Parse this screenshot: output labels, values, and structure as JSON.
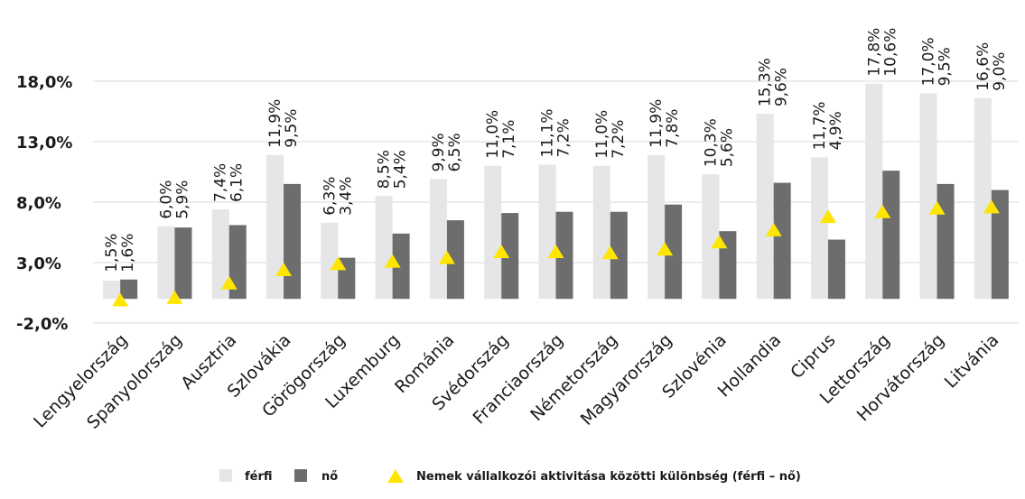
{
  "chart_data": {
    "type": "bar",
    "categories": [
      "Lengyelország",
      "Spanyolország",
      "Ausztria",
      "Szlovákia",
      "Görögország",
      "Luxemburg",
      "Románia",
      "Svédország",
      "Franciaország",
      "Németország",
      "Magyarország",
      "Szlovénia",
      "Hollandia",
      "Ciprus",
      "Lettország",
      "Horvátország",
      "Litvánia"
    ],
    "series": [
      {
        "name": "férfi",
        "color": "#e6e5e8",
        "values": [
          1.5,
          6.0,
          7.4,
          11.9,
          6.3,
          8.5,
          9.9,
          11.0,
          11.1,
          11.0,
          11.9,
          10.3,
          15.3,
          11.7,
          17.8,
          17.0,
          16.6
        ],
        "labels": [
          "1,5%",
          "6,0%",
          "7,4%",
          "11,9%",
          "6,3%",
          "8,5%",
          "9,9%",
          "11,0%",
          "11,1%",
          "11,0%",
          "11,9%",
          "10,3%",
          "15,3%",
          "11,7%",
          "17,8%",
          "17,0%",
          "16,6%"
        ]
      },
      {
        "name": "nő",
        "color": "#6d6d6d",
        "values": [
          1.6,
          5.9,
          6.1,
          9.5,
          3.4,
          5.4,
          6.5,
          7.1,
          7.2,
          7.2,
          7.8,
          5.6,
          9.6,
          4.9,
          10.6,
          9.5,
          9.0
        ],
        "labels": [
          "1,6%",
          "5,9%",
          "6,1%",
          "9,5%",
          "3,4%",
          "5,4%",
          "6,5%",
          "7,1%",
          "7,2%",
          "7,2%",
          "7,8%",
          "5,6%",
          "9,6%",
          "4,9%",
          "10,6%",
          "9,5%",
          "9,0%"
        ]
      },
      {
        "name": "Nemek vállalkozói aktivitása közötti különbség (férfi – nő)",
        "marker": "triangle",
        "color": "#ffe600",
        "values": [
          -0.1,
          0.1,
          1.3,
          2.4,
          2.9,
          3.1,
          3.4,
          3.9,
          3.9,
          3.8,
          4.1,
          4.7,
          5.7,
          6.8,
          7.2,
          7.5,
          7.6
        ]
      }
    ],
    "y_axis": {
      "ticks": [
        -2.0,
        3.0,
        8.0,
        13.0,
        18.0
      ],
      "tick_labels": [
        "-2,0%",
        "3,0%",
        "8,0%",
        "13,0%",
        "18,0%"
      ],
      "ylim": [
        -2.0,
        18.0
      ]
    },
    "grid": true,
    "legend_position": "bottom"
  }
}
